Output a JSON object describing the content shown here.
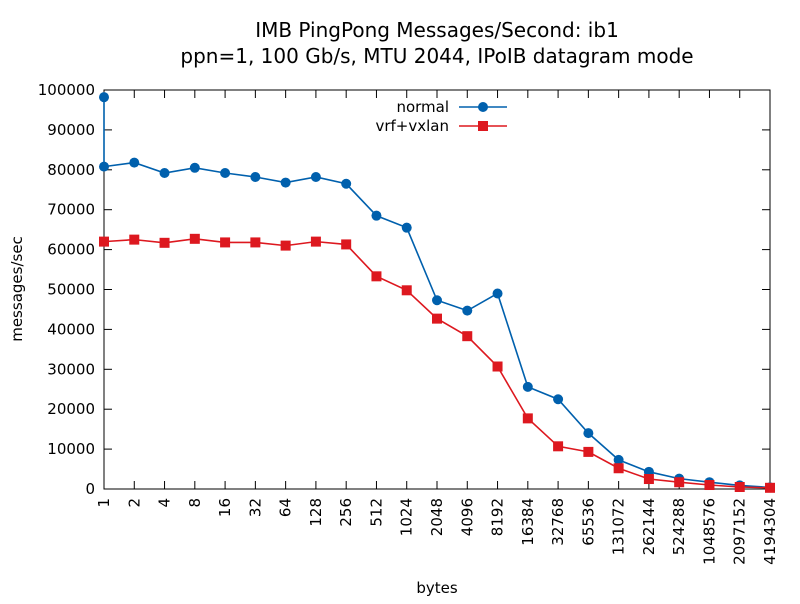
{
  "chart_data": {
    "type": "line",
    "title": "IMB PingPong Messages/Second: ib1",
    "subtitle": "ppn=1, 100 Gb/s, MTU 2044, IPoIB datagram mode",
    "xlabel": "bytes",
    "ylabel": "messages/sec",
    "categories": [
      "1",
      "2",
      "4",
      "8",
      "16",
      "32",
      "64",
      "128",
      "256",
      "512",
      "1024",
      "2048",
      "4096",
      "8192",
      "16384",
      "32768",
      "65536",
      "131072",
      "262144",
      "524288",
      "1048576",
      "2097152",
      "4194304"
    ],
    "ylim": [
      0,
      100000
    ],
    "yticks": [
      "0",
      "10000",
      "20000",
      "30000",
      "40000",
      "50000",
      "60000",
      "70000",
      "80000",
      "90000",
      "100000"
    ],
    "grid": false,
    "legend_position": "top-center",
    "series": [
      {
        "name": "normal",
        "color": "#0060ad",
        "marker": "circle",
        "first_point_extra": 98200,
        "values": [
          80800,
          81800,
          79200,
          80500,
          79200,
          78200,
          76800,
          78200,
          76500,
          68500,
          65500,
          47300,
          44700,
          49000,
          25600,
          22500,
          14000,
          7300,
          4300,
          2600,
          1700,
          900,
          400
        ]
      },
      {
        "name": "vrf+vxlan",
        "color": "#dd181f",
        "marker": "square",
        "values": [
          62000,
          62500,
          61700,
          62700,
          61800,
          61800,
          61000,
          62000,
          61300,
          53300,
          49800,
          42700,
          38300,
          30700,
          17700,
          10700,
          9300,
          5200,
          2500,
          1700,
          1000,
          500,
          300
        ]
      }
    ]
  }
}
